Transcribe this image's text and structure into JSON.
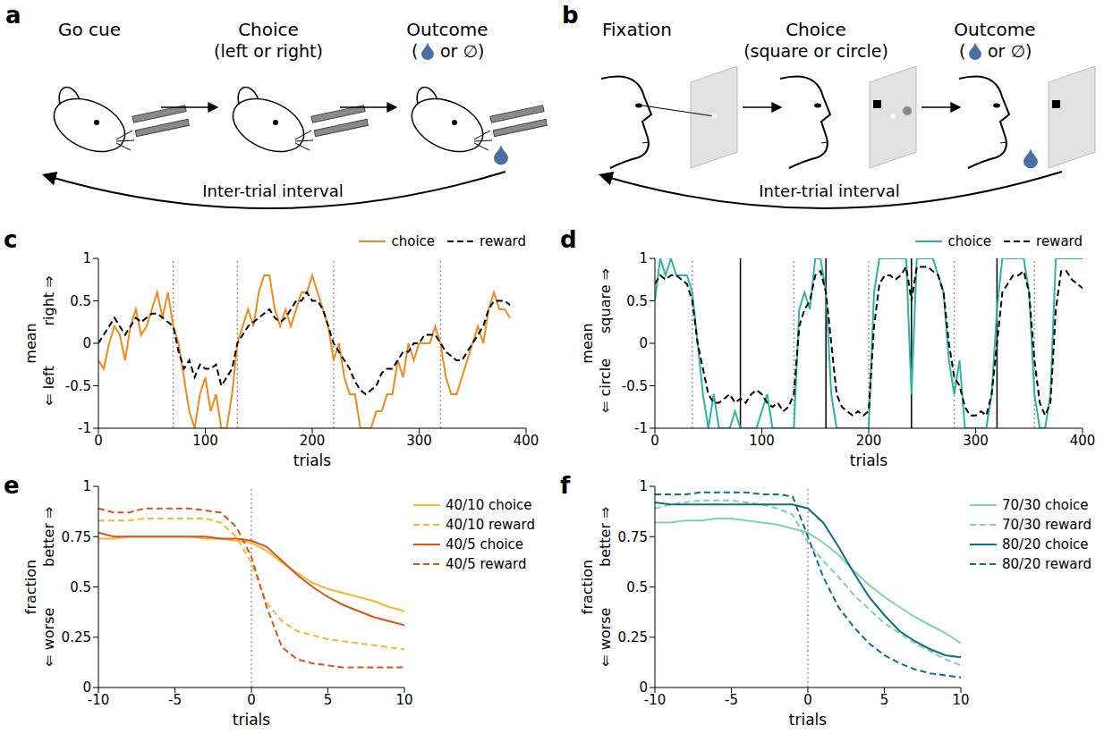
{
  "diagrams": [
    {
      "panel": "a",
      "steps": [
        "Go cue",
        "Choice",
        "Outcome"
      ],
      "choice_note": "(left or right)",
      "outcome_parts": [
        "(",
        "or",
        "∅)"
      ],
      "loop_label": "Inter-trial interval"
    },
    {
      "panel": "b",
      "steps": [
        "Fixation",
        "Choice",
        "Outcome"
      ],
      "choice_note": "(square or circle)",
      "outcome_parts": [
        "(",
        "or",
        "∅)"
      ],
      "loop_label": "Inter-trial interval"
    }
  ],
  "chart_data": [
    {
      "panel": "c",
      "type": "line",
      "xlabel": "trials",
      "ylabel": "mean",
      "ylabel_low": "⇐ left",
      "ylabel_high": "right ⇒",
      "xlim": [
        0,
        400
      ],
      "xticks": [
        0,
        100,
        200,
        300,
        400
      ],
      "ylim": [
        -1,
        1
      ],
      "yticks": [
        -1,
        -0.5,
        0,
        0.5,
        1
      ],
      "legend": "top right",
      "vlines": [
        {
          "x": 70,
          "line_style": "dotted",
          "color": "#999999"
        },
        {
          "x": 130,
          "line_style": "dotted",
          "color": "#999999"
        },
        {
          "x": 220,
          "line_style": "dotted",
          "color": "#999999"
        },
        {
          "x": 320,
          "line_style": "dotted",
          "color": "#999999"
        }
      ],
      "x": [
        0,
        5,
        10,
        15,
        20,
        25,
        30,
        35,
        40,
        45,
        50,
        55,
        60,
        65,
        70,
        75,
        80,
        85,
        90,
        95,
        100,
        105,
        110,
        115,
        120,
        125,
        130,
        135,
        140,
        145,
        150,
        155,
        160,
        165,
        170,
        175,
        180,
        185,
        190,
        195,
        200,
        205,
        210,
        215,
        220,
        225,
        230,
        235,
        240,
        245,
        250,
        255,
        260,
        265,
        270,
        275,
        280,
        285,
        290,
        295,
        300,
        305,
        310,
        315,
        320,
        325,
        330,
        335,
        340,
        345,
        350,
        355,
        360,
        365,
        370,
        375,
        380,
        385
      ],
      "series": [
        {
          "name": "choice",
          "color": "#f08a1c",
          "line_style": "solid",
          "values": [
            -0.2,
            -0.3,
            0,
            0.2,
            0.1,
            -0.2,
            0.2,
            0.4,
            0.1,
            0.2,
            0.4,
            0.6,
            0.3,
            0.6,
            0.2,
            0,
            -0.4,
            -0.8,
            -1,
            -0.6,
            -0.4,
            -0.8,
            -0.6,
            -1,
            -1,
            -0.6,
            0,
            0.2,
            0.4,
            0.2,
            0.6,
            0.8,
            0.8,
            0.4,
            0.2,
            0.4,
            0.2,
            0.4,
            0.6,
            0.6,
            0.8,
            0.6,
            0.4,
            0.2,
            -0.2,
            0,
            -0.4,
            -0.6,
            -0.6,
            -1,
            -1,
            -1,
            -0.8,
            -0.8,
            -0.6,
            -0.6,
            -0.2,
            -0.4,
            0,
            -0.2,
            0,
            0,
            0,
            0.2,
            0,
            -0.4,
            -0.6,
            -0.6,
            -0.4,
            -0.2,
            0,
            0.2,
            0,
            0.4,
            0.6,
            0.4,
            0.4,
            0.3
          ]
        },
        {
          "name": "reward",
          "color": "#000000",
          "line_style": "dashed",
          "values": [
            0,
            0.1,
            0.2,
            0.3,
            0.2,
            0.1,
            0.2,
            0.3,
            0.25,
            0.3,
            0.35,
            0.35,
            0.3,
            0.25,
            0.2,
            -0.1,
            -0.3,
            -0.2,
            -0.4,
            -0.25,
            -0.3,
            -0.3,
            -0.25,
            -0.5,
            -0.4,
            -0.3,
            0,
            0.1,
            0.2,
            0.25,
            0.3,
            0.35,
            0.4,
            0.3,
            0.25,
            0.3,
            0.4,
            0.5,
            0.5,
            0.6,
            0.5,
            0.5,
            0.4,
            0.2,
            0,
            -0.1,
            -0.2,
            -0.3,
            -0.45,
            -0.55,
            -0.6,
            -0.55,
            -0.5,
            -0.35,
            -0.3,
            -0.3,
            -0.2,
            -0.1,
            -0.1,
            0,
            0,
            0.1,
            0.1,
            0.1,
            0,
            -0.1,
            -0.15,
            -0.2,
            -0.2,
            -0.1,
            0,
            0.1,
            0.2,
            0.4,
            0.5,
            0.5,
            0.5,
            0.45
          ]
        }
      ]
    },
    {
      "panel": "d",
      "type": "line",
      "xlabel": "trials",
      "ylabel": "mean",
      "ylabel_low": "⇐ circle",
      "ylabel_high": "square ⇒",
      "xlim": [
        0,
        400
      ],
      "xticks": [
        0,
        100,
        200,
        300,
        400
      ],
      "ylim": [
        -1,
        1
      ],
      "yticks": [
        -1,
        -0.5,
        0,
        0.5,
        1
      ],
      "legend": "top right",
      "vlines": [
        {
          "x": 35,
          "line_style": "dotted",
          "color": "#999999"
        },
        {
          "x": 80,
          "line_style": "solid",
          "color": "#000000"
        },
        {
          "x": 130,
          "line_style": "dotted",
          "color": "#999999"
        },
        {
          "x": 160,
          "line_style": "solid",
          "color": "#000000"
        },
        {
          "x": 200,
          "line_style": "dotted",
          "color": "#999999"
        },
        {
          "x": 240,
          "line_style": "solid",
          "color": "#000000"
        },
        {
          "x": 280,
          "line_style": "dotted",
          "color": "#999999"
        },
        {
          "x": 320,
          "line_style": "solid",
          "color": "#000000"
        },
        {
          "x": 355,
          "line_style": "dotted",
          "color": "#999999"
        }
      ],
      "x": [
        0,
        5,
        10,
        15,
        20,
        25,
        30,
        35,
        40,
        45,
        50,
        55,
        60,
        65,
        70,
        75,
        80,
        85,
        90,
        95,
        100,
        105,
        110,
        115,
        120,
        125,
        130,
        135,
        140,
        145,
        150,
        155,
        160,
        165,
        170,
        175,
        180,
        185,
        190,
        195,
        200,
        205,
        210,
        215,
        220,
        225,
        230,
        235,
        240,
        245,
        250,
        255,
        260,
        265,
        270,
        275,
        280,
        285,
        290,
        295,
        300,
        305,
        310,
        315,
        320,
        325,
        330,
        335,
        340,
        345,
        350,
        355,
        360,
        365,
        370,
        375,
        380,
        385,
        390,
        395,
        400
      ],
      "series": [
        {
          "name": "choice",
          "color": "#2ab5a5",
          "line_style": "solid",
          "values": [
            0.5,
            1,
            0.8,
            1,
            0.8,
            0.8,
            0.8,
            0.6,
            0,
            -0.6,
            -1,
            -0.6,
            -1,
            -1,
            -1,
            -0.8,
            -1,
            -1,
            -1,
            -1,
            -0.8,
            -0.6,
            -1,
            -1,
            -1,
            -1,
            -1,
            0.4,
            0.6,
            0.4,
            1,
            1,
            0.6,
            -0.6,
            -1,
            -1,
            -1,
            -1,
            -1,
            -1,
            -1,
            0.6,
            1,
            1,
            1,
            1,
            1,
            1,
            -0.6,
            1,
            1,
            1,
            1,
            0.8,
            0.6,
            -0.2,
            -0.6,
            -0.2,
            -1,
            -1,
            -1,
            -1,
            -1,
            -0.6,
            0.4,
            1,
            1,
            1,
            1,
            1,
            0.6,
            -0.6,
            -1,
            -1,
            -0.6,
            1,
            1,
            1,
            1,
            1,
            1
          ]
        },
        {
          "name": "reward",
          "color": "#000000",
          "line_style": "dashed",
          "values": [
            0.7,
            0.8,
            0.75,
            0.8,
            0.8,
            0.75,
            0.7,
            0.5,
            0,
            -0.3,
            -0.6,
            -0.7,
            -0.7,
            -0.65,
            -0.6,
            -0.7,
            -0.65,
            -0.7,
            -0.6,
            -0.55,
            -0.6,
            -0.7,
            -0.75,
            -0.7,
            -0.8,
            -0.75,
            -0.6,
            0.2,
            0.4,
            0.5,
            0.8,
            0.85,
            0.6,
            0,
            -0.6,
            -0.75,
            -0.8,
            -0.85,
            -0.8,
            -0.85,
            -0.8,
            0.2,
            0.7,
            0.8,
            0.8,
            0.75,
            0.8,
            0.9,
            0.5,
            0.9,
            0.9,
            0.9,
            0.85,
            0.8,
            0.6,
            0,
            -0.4,
            -0.5,
            -0.75,
            -0.85,
            -0.85,
            -0.8,
            -0.85,
            -0.6,
            0,
            0.6,
            0.7,
            0.8,
            0.8,
            0.85,
            0.6,
            -0.2,
            -0.7,
            -0.85,
            -0.7,
            0.4,
            0.85,
            0.85,
            0.75,
            0.7,
            0.65
          ]
        }
      ]
    },
    {
      "panel": "e",
      "type": "line",
      "xlabel": "trials",
      "ylabel": "fraction",
      "ylabel_low": "⇐ worse",
      "ylabel_high": "better ⇒",
      "xlim": [
        -10,
        10
      ],
      "xticks": [
        -10,
        -5,
        0,
        5,
        10
      ],
      "ylim": [
        0,
        1
      ],
      "yticks": [
        0,
        0.25,
        0.5,
        0.75,
        1
      ],
      "legend": "right",
      "vlines": [
        {
          "x": 0,
          "line_style": "dotted",
          "color": "#999999"
        }
      ],
      "x": [
        -10,
        -9,
        -8,
        -7,
        -6,
        -5,
        -4,
        -3,
        -2,
        -1,
        0,
        1,
        2,
        3,
        4,
        5,
        6,
        7,
        8,
        9,
        10
      ],
      "series": [
        {
          "name": "40/10 choice",
          "color": "#f5b82e",
          "line_style": "solid",
          "values": [
            0.74,
            0.74,
            0.75,
            0.75,
            0.75,
            0.75,
            0.75,
            0.74,
            0.74,
            0.73,
            0.72,
            0.68,
            0.62,
            0.57,
            0.52,
            0.49,
            0.47,
            0.45,
            0.43,
            0.4,
            0.38
          ]
        },
        {
          "name": "40/10 reward",
          "color": "#f5b82e",
          "line_style": "dashed",
          "values": [
            0.83,
            0.83,
            0.83,
            0.84,
            0.84,
            0.84,
            0.84,
            0.84,
            0.82,
            0.75,
            0.62,
            0.42,
            0.33,
            0.28,
            0.26,
            0.24,
            0.23,
            0.22,
            0.21,
            0.2,
            0.19
          ]
        },
        {
          "name": "40/5 choice",
          "color": "#d9541e",
          "line_style": "solid",
          "values": [
            0.77,
            0.75,
            0.75,
            0.75,
            0.75,
            0.75,
            0.75,
            0.75,
            0.74,
            0.74,
            0.73,
            0.7,
            0.63,
            0.56,
            0.5,
            0.45,
            0.41,
            0.38,
            0.35,
            0.33,
            0.31
          ]
        },
        {
          "name": "40/5 reward",
          "color": "#d9541e",
          "line_style": "dashed",
          "values": [
            0.89,
            0.87,
            0.87,
            0.89,
            0.89,
            0.89,
            0.89,
            0.88,
            0.87,
            0.8,
            0.65,
            0.4,
            0.2,
            0.14,
            0.12,
            0.11,
            0.1,
            0.1,
            0.1,
            0.1,
            0.1
          ]
        }
      ]
    },
    {
      "panel": "f",
      "type": "line",
      "xlabel": "trials",
      "ylabel": "fraction",
      "ylabel_low": "⇐ worse",
      "ylabel_high": "better ⇒",
      "xlim": [
        -10,
        10
      ],
      "xticks": [
        -10,
        -5,
        0,
        5,
        10
      ],
      "ylim": [
        0,
        1
      ],
      "yticks": [
        0,
        0.25,
        0.5,
        0.75,
        1
      ],
      "legend": "right",
      "vlines": [
        {
          "x": 0,
          "line_style": "dotted",
          "color": "#999999"
        }
      ],
      "x": [
        -10,
        -9,
        -8,
        -7,
        -6,
        -5,
        -4,
        -3,
        -2,
        -1,
        0,
        1,
        2,
        3,
        4,
        5,
        6,
        7,
        8,
        9,
        10
      ],
      "series": [
        {
          "name": "70/30 choice",
          "color": "#7fd3a8",
          "line_style": "solid",
          "values": [
            0.82,
            0.82,
            0.83,
            0.83,
            0.84,
            0.84,
            0.83,
            0.82,
            0.81,
            0.79,
            0.77,
            0.72,
            0.66,
            0.58,
            0.51,
            0.45,
            0.4,
            0.35,
            0.31,
            0.27,
            0.22
          ]
        },
        {
          "name": "70/30 reward",
          "color": "#7fd3a8",
          "line_style": "dashed",
          "values": [
            0.89,
            0.91,
            0.92,
            0.93,
            0.93,
            0.93,
            0.92,
            0.91,
            0.89,
            0.86,
            0.72,
            0.63,
            0.55,
            0.46,
            0.39,
            0.32,
            0.27,
            0.22,
            0.18,
            0.14,
            0.11
          ]
        },
        {
          "name": "80/20 choice",
          "color": "#0f6e8c",
          "line_style": "solid",
          "values": [
            0.92,
            0.91,
            0.91,
            0.91,
            0.91,
            0.91,
            0.91,
            0.91,
            0.91,
            0.91,
            0.89,
            0.82,
            0.7,
            0.57,
            0.45,
            0.36,
            0.28,
            0.23,
            0.19,
            0.16,
            0.15
          ]
        },
        {
          "name": "80/20 reward",
          "color": "#0f6e8c",
          "line_style": "dashed",
          "values": [
            0.96,
            0.96,
            0.96,
            0.97,
            0.97,
            0.97,
            0.97,
            0.96,
            0.96,
            0.95,
            0.75,
            0.55,
            0.4,
            0.3,
            0.22,
            0.16,
            0.12,
            0.09,
            0.07,
            0.06,
            0.05
          ]
        }
      ]
    }
  ]
}
